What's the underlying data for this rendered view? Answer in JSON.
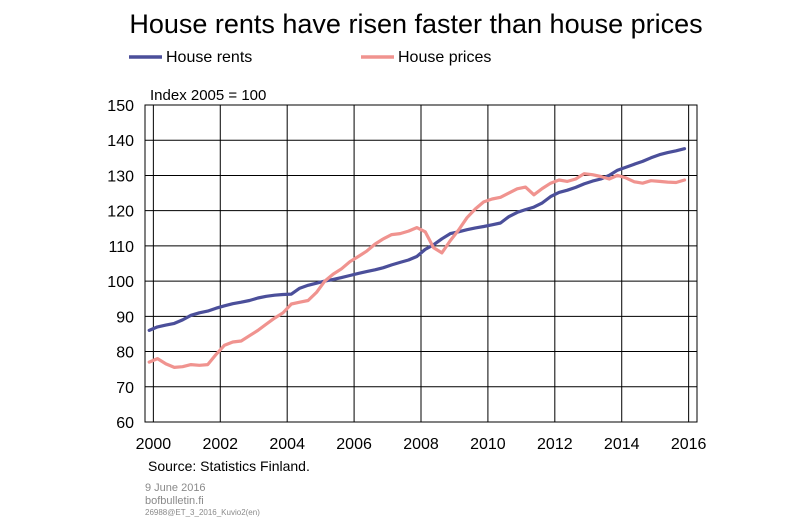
{
  "chart_data": {
    "type": "line",
    "title": "House rents have risen faster than house prices",
    "unit_label": "Index  2005 = 100",
    "source": "Source: Statistics Finland.",
    "ylim": [
      60,
      150
    ],
    "yticks": [
      60,
      70,
      80,
      90,
      100,
      110,
      120,
      130,
      140,
      150
    ],
    "xlim": [
      1999.75,
      2016.25
    ],
    "xticks": [
      "2000",
      "2002",
      "2004",
      "2006",
      "2008",
      "2010",
      "2012",
      "2014",
      "2016"
    ],
    "grid": true,
    "legend_position": "top",
    "series": [
      {
        "name": "House rents",
        "color": "#4b4f9a",
        "x": [
          1999.875,
          2000.125,
          2000.375,
          2000.625,
          2000.875,
          2001.125,
          2001.375,
          2001.625,
          2001.875,
          2002.125,
          2002.375,
          2002.625,
          2002.875,
          2003.125,
          2003.375,
          2003.625,
          2003.875,
          2004.125,
          2004.375,
          2004.625,
          2004.875,
          2005.125,
          2005.375,
          2005.625,
          2005.875,
          2006.125,
          2006.375,
          2006.625,
          2006.875,
          2007.125,
          2007.375,
          2007.625,
          2007.875,
          2008.125,
          2008.375,
          2008.625,
          2008.875,
          2009.125,
          2009.375,
          2009.625,
          2009.875,
          2010.125,
          2010.375,
          2010.625,
          2010.875,
          2011.125,
          2011.375,
          2011.625,
          2011.875,
          2012.125,
          2012.375,
          2012.625,
          2012.875,
          2013.125,
          2013.375,
          2013.625,
          2013.875,
          2014.125,
          2014.375,
          2014.625,
          2014.875,
          2015.125,
          2015.375,
          2015.625,
          2015.875
        ],
        "values": [
          86.0,
          87.0,
          87.5,
          88.0,
          89.0,
          90.3,
          91.0,
          91.5,
          92.3,
          93.0,
          93.6,
          94.0,
          94.5,
          95.2,
          95.7,
          96.0,
          96.2,
          96.3,
          98.0,
          98.8,
          99.4,
          100.0,
          100.5,
          101.0,
          101.6,
          102.2,
          102.7,
          103.2,
          103.8,
          104.6,
          105.3,
          106.0,
          107.0,
          109.0,
          110.3,
          112.0,
          113.5,
          114.0,
          114.6,
          115.1,
          115.5,
          116.0,
          116.5,
          118.3,
          119.5,
          120.3,
          121.0,
          122.2,
          124.0,
          125.2,
          125.8,
          126.6,
          127.6,
          128.4,
          129.0,
          130.0,
          131.5,
          132.3,
          133.2,
          134.0,
          135.0,
          135.9,
          136.5,
          137.0,
          137.6
        ]
      },
      {
        "name": "House prices",
        "color": "#f0938f",
        "x": [
          1999.875,
          2000.125,
          2000.375,
          2000.625,
          2000.875,
          2001.125,
          2001.375,
          2001.625,
          2001.875,
          2002.125,
          2002.375,
          2002.625,
          2002.875,
          2003.125,
          2003.375,
          2003.625,
          2003.875,
          2004.125,
          2004.375,
          2004.625,
          2004.875,
          2005.125,
          2005.375,
          2005.625,
          2005.875,
          2006.125,
          2006.375,
          2006.625,
          2006.875,
          2007.125,
          2007.375,
          2007.625,
          2007.875,
          2008.125,
          2008.375,
          2008.625,
          2008.875,
          2009.125,
          2009.375,
          2009.625,
          2009.875,
          2010.125,
          2010.375,
          2010.625,
          2010.875,
          2011.125,
          2011.375,
          2011.625,
          2011.875,
          2012.125,
          2012.375,
          2012.625,
          2012.875,
          2013.125,
          2013.375,
          2013.625,
          2013.875,
          2014.125,
          2014.375,
          2014.625,
          2014.875,
          2015.125,
          2015.375,
          2015.625,
          2015.875
        ],
        "values": [
          77.0,
          78.0,
          76.5,
          75.5,
          75.7,
          76.3,
          76.1,
          76.3,
          79.2,
          81.8,
          82.7,
          83.0,
          84.5,
          86.0,
          87.8,
          89.5,
          91.0,
          93.5,
          94.0,
          94.5,
          96.8,
          100.0,
          102.0,
          103.5,
          105.5,
          107.0,
          108.5,
          110.5,
          112.0,
          113.2,
          113.5,
          114.2,
          115.2,
          114.0,
          109.5,
          108.0,
          111.5,
          114.5,
          118.0,
          120.5,
          122.5,
          123.3,
          123.8,
          125.0,
          126.2,
          126.7,
          124.5,
          126.3,
          127.8,
          128.7,
          128.3,
          129.0,
          130.5,
          130.2,
          129.7,
          129.0,
          130.0,
          129.3,
          128.2,
          127.8,
          128.5,
          128.3,
          128.1,
          128.0,
          128.7
        ]
      }
    ]
  },
  "footer": {
    "date": "9 June 2016",
    "site": "bofbulletin.fi",
    "code": "26988@ET_3_2016_Kuvio2(en)"
  }
}
